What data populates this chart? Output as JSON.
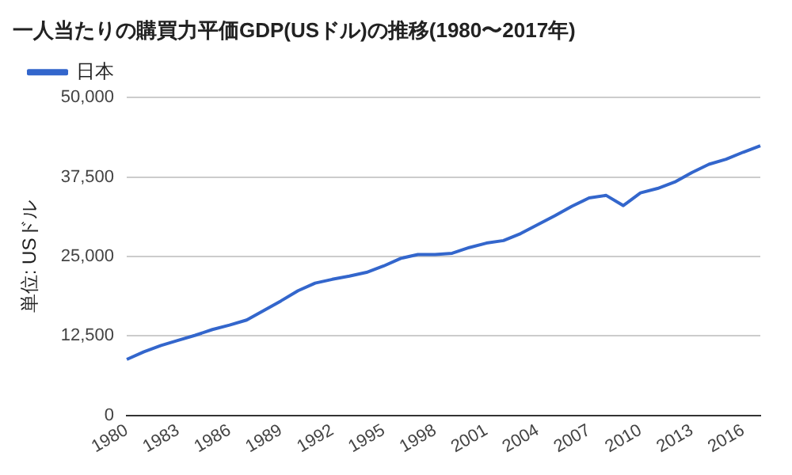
{
  "chart_data": {
    "type": "line",
    "title": "一人当たりの購買力平価GDP(USドル)の推移(1980〜2017年)",
    "ylabel": "単位: USドル",
    "categories": [
      "1980",
      null,
      null,
      "1983",
      null,
      null,
      "1986",
      null,
      null,
      "1989",
      null,
      null,
      "1992",
      null,
      null,
      "1995",
      null,
      null,
      "1998",
      null,
      null,
      "2001",
      null,
      null,
      "2004",
      null,
      null,
      "2007",
      null,
      null,
      "2010",
      null,
      null,
      "2013",
      null,
      null,
      "2016",
      null
    ],
    "series": [
      {
        "name": "日本",
        "color": "#3366cc",
        "values": [
          8800,
          10000,
          11000,
          11800,
          12600,
          13500,
          14200,
          15000,
          16500,
          18000,
          19600,
          20800,
          21400,
          21900,
          22500,
          23500,
          24700,
          25300,
          25300,
          25500,
          26400,
          27100,
          27500,
          28600,
          30000,
          31400,
          32900,
          34200,
          34600,
          33000,
          35000,
          35700,
          36700,
          38200,
          39500,
          40300,
          41400,
          42400
        ]
      }
    ],
    "ylim": [
      0,
      50000
    ],
    "yticks": [
      0,
      {
        "value": 12500,
        "label": "12,500"
      },
      {
        "value": 25000,
        "label": "25,000"
      },
      {
        "value": 37500,
        "label": "37,500"
      },
      {
        "value": 50000,
        "label": "50,000"
      }
    ],
    "grid": "y",
    "legend": "top left",
    "marker": "none",
    "line_style": "solid"
  }
}
